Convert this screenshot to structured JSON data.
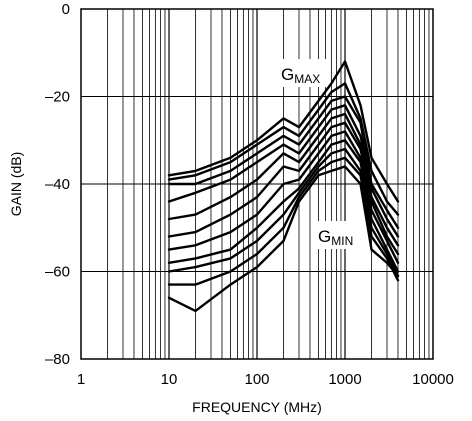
{
  "chart_data": {
    "type": "line",
    "title": "",
    "xlabel": "FREQUENCY (MHz)",
    "ylabel": "GAIN (dB)",
    "xscale": "log",
    "xlim": [
      1,
      10000
    ],
    "ylim": [
      -80,
      0
    ],
    "grid": true,
    "x_ticks": [
      "1",
      "10",
      "100",
      "1000",
      "10000"
    ],
    "y_ticks": [
      "0",
      "–20",
      "–40",
      "–60",
      "–80"
    ],
    "annotations": [
      {
        "main": "G",
        "sub": "MAX",
        "x": 320,
        "y": -15
      },
      {
        "main": "G",
        "sub": "MIN",
        "x": 700,
        "y": -52
      }
    ],
    "x": [
      10,
      20,
      50,
      100,
      200,
      300,
      500,
      700,
      1000,
      1500,
      2000,
      3000,
      4000
    ],
    "series": [
      {
        "values": [
          -38,
          -37,
          -34,
          -30,
          -25,
          -27,
          -21,
          -17,
          -12,
          -22,
          -34,
          -40,
          -44
        ]
      },
      {
        "values": [
          -39,
          -38,
          -35,
          -31,
          -27,
          -29,
          -23,
          -19,
          -17,
          -25,
          -37,
          -44,
          -47
        ]
      },
      {
        "values": [
          -40,
          -40,
          -37,
          -33,
          -29,
          -31,
          -25,
          -21,
          -20,
          -26,
          -40,
          -46,
          -50
        ]
      },
      {
        "values": [
          -44,
          -42,
          -39,
          -35,
          -31,
          -33,
          -27,
          -23,
          -22,
          -29,
          -41,
          -48,
          -52
        ]
      },
      {
        "values": [
          -48,
          -47,
          -43,
          -39,
          -33,
          -35,
          -29,
          -25,
          -24,
          -31,
          -43,
          -50,
          -54
        ]
      },
      {
        "values": [
          -52,
          -51,
          -47,
          -43,
          -36,
          -37,
          -31,
          -27,
          -26,
          -32,
          -44,
          -52,
          -56
        ]
      },
      {
        "values": [
          -55,
          -54,
          -51,
          -47,
          -40,
          -39,
          -33,
          -29,
          -28,
          -34,
          -46,
          -53,
          -58
        ]
      },
      {
        "values": [
          -58,
          -57,
          -55,
          -50,
          -44,
          -41,
          -35,
          -31,
          -30,
          -35,
          -48,
          -55,
          -60
        ]
      },
      {
        "values": [
          -60,
          -59,
          -57,
          -53,
          -47,
          -42,
          -36,
          -33,
          -32,
          -37,
          -50,
          -56,
          -61
        ]
      },
      {
        "values": [
          -63,
          -63,
          -60,
          -56,
          -50,
          -43,
          -37,
          -35,
          -34,
          -38,
          -52,
          -57,
          -62
        ]
      },
      {
        "values": [
          -66,
          -69,
          -63,
          -59,
          -53,
          -44,
          -38,
          -37,
          -36,
          -40,
          -55,
          -58,
          -61
        ]
      }
    ]
  }
}
